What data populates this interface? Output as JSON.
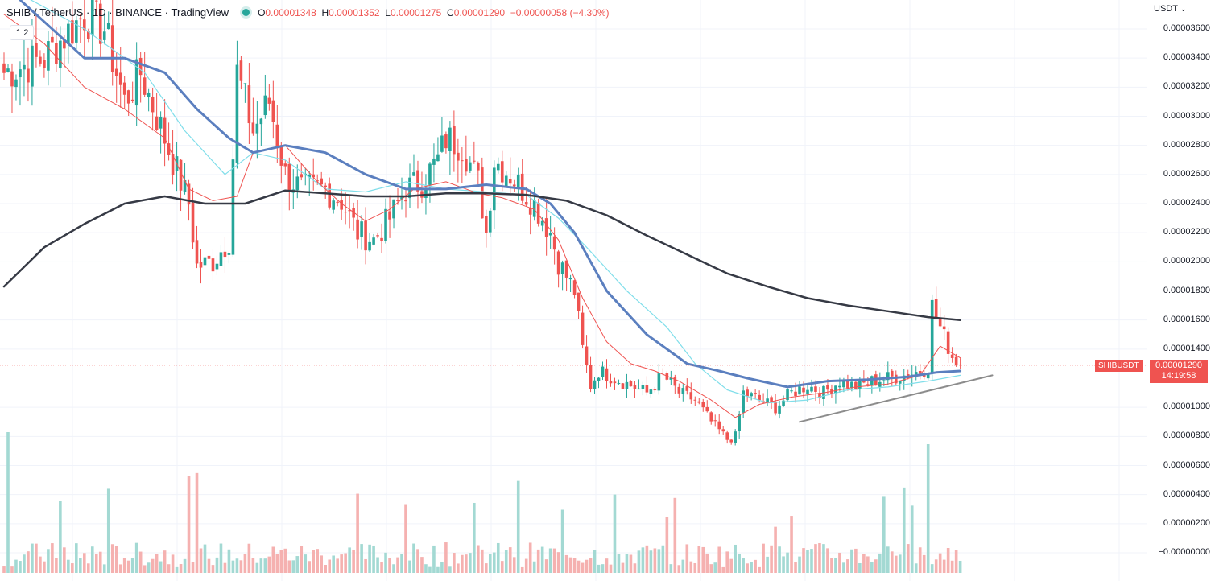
{
  "header": {
    "symbol": "SHIB",
    "separator": "/",
    "quote": "TetherUS",
    "interval": "1D",
    "exchange": "BINANCE",
    "provider": "TradingView",
    "open_key": "O",
    "open": "0.00001348",
    "high_key": "H",
    "high": "0.00001352",
    "low_key": "L",
    "low": "0.00001275",
    "close_key": "C",
    "close": "0.00001290",
    "change": "−0.00000058 (−4.30%)"
  },
  "indicator_toggle": "2",
  "price_scale": {
    "currency": "USDT",
    "ticks": [
      "0.00003600",
      "0.00003400",
      "0.00003200",
      "0.00003000",
      "0.00002800",
      "0.00002600",
      "0.00002400",
      "0.00002200",
      "0.00002000",
      "0.00001800",
      "0.00001600",
      "0.00001400",
      "0.00001000",
      "0.00000800",
      "0.00000600",
      "0.00000400",
      "0.00000200",
      "−0.00000000"
    ]
  },
  "last_price": {
    "symbol": "SHIBUSDT",
    "price": "0.00001290",
    "countdown": "14:19:58"
  },
  "colors": {
    "up": "#26a69a",
    "down": "#ef5350",
    "ma_fast": "#ef5350",
    "ma_mid": "#80deea",
    "ma_slow": "#5b7fbf",
    "ma_long": "#363a45",
    "trendline": "#8c8c8c"
  },
  "chart_data": {
    "type": "candlestick",
    "interval": "1D",
    "ylim": [
      -1e-07,
      3.7e-06
    ],
    "waypoints": [
      [
        0,
        3.3e-05
      ],
      [
        10,
        3.4e-05
      ],
      [
        20,
        3.7e-05
      ],
      [
        25,
        3.6e-05
      ],
      [
        30,
        3.1e-05
      ],
      [
        34,
        3.3e-05
      ],
      [
        38,
        3e-05
      ],
      [
        42,
        2.7e-05
      ],
      [
        46,
        2.4e-05
      ],
      [
        48,
        1.97e-05
      ],
      [
        52,
        2e-05
      ],
      [
        56,
        2.15e-05
      ],
      [
        58,
        3.3e-05
      ],
      [
        62,
        2.9e-05
      ],
      [
        66,
        3.1e-05
      ],
      [
        70,
        2.6e-05
      ],
      [
        74,
        2.5e-05
      ],
      [
        80,
        2.5e-05
      ],
      [
        84,
        2.42e-05
      ],
      [
        88,
        2.2e-05
      ],
      [
        92,
        2.15e-05
      ],
      [
        96,
        2.3e-05
      ],
      [
        100,
        2.5e-05
      ],
      [
        104,
        2.55e-05
      ],
      [
        108,
        2.7e-05
      ],
      [
        110,
        2.85e-05
      ],
      [
        114,
        2.8e-05
      ],
      [
        118,
        2.55e-05
      ],
      [
        120,
        2.2e-05
      ],
      [
        122,
        2.7e-05
      ],
      [
        126,
        2.6e-05
      ],
      [
        132,
        2.4e-05
      ],
      [
        136,
        2.2e-05
      ],
      [
        138,
        2e-05
      ],
      [
        142,
        1.8e-05
      ],
      [
        144,
        1.4e-05
      ],
      [
        146,
        1.15e-05
      ],
      [
        148,
        1.25e-05
      ],
      [
        152,
        1.2e-05
      ],
      [
        156,
        1.15e-05
      ],
      [
        160,
        1.1e-05
      ],
      [
        164,
        1.22e-05
      ],
      [
        168,
        1.1e-05
      ],
      [
        172,
        1.05e-05
      ],
      [
        176,
        9e-06
      ],
      [
        180,
        7.8e-06
      ],
      [
        182,
        8e-06
      ],
      [
        184,
        1.1e-05
      ],
      [
        188,
        1.05e-05
      ],
      [
        192,
        1e-05
      ],
      [
        196,
        1.1e-05
      ],
      [
        200,
        1.15e-05
      ],
      [
        204,
        1.1e-05
      ],
      [
        208,
        1.18e-05
      ],
      [
        212,
        1.14e-05
      ],
      [
        216,
        1.18e-05
      ],
      [
        220,
        1.2e-05
      ],
      [
        224,
        1.22e-05
      ],
      [
        228,
        1.25e-05
      ],
      [
        230,
        1.28e-05
      ],
      [
        231,
        1.7e-05
      ],
      [
        233,
        1.55e-05
      ],
      [
        236,
        1.35e-05
      ],
      [
        238,
        1.29e-05
      ]
    ],
    "ma_long": [
      [
        0,
        1.83e-05
      ],
      [
        10,
        2.1e-05
      ],
      [
        20,
        2.26e-05
      ],
      [
        30,
        2.4e-05
      ],
      [
        40,
        2.45e-05
      ],
      [
        50,
        2.4e-05
      ],
      [
        60,
        2.4e-05
      ],
      [
        70,
        2.49e-05
      ],
      [
        80,
        2.47e-05
      ],
      [
        90,
        2.45e-05
      ],
      [
        100,
        2.45e-05
      ],
      [
        110,
        2.47e-05
      ],
      [
        120,
        2.47e-05
      ],
      [
        130,
        2.46e-05
      ],
      [
        140,
        2.42e-05
      ],
      [
        150,
        2.32e-05
      ],
      [
        160,
        2.18e-05
      ],
      [
        170,
        2.05e-05
      ],
      [
        180,
        1.92e-05
      ],
      [
        190,
        1.83e-05
      ],
      [
        200,
        1.75e-05
      ],
      [
        210,
        1.7e-05
      ],
      [
        220,
        1.66e-05
      ],
      [
        230,
        1.62e-05
      ],
      [
        238,
        1.6e-05
      ]
    ],
    "ma_slow": [
      [
        0,
        3.9e-05
      ],
      [
        20,
        3.4e-05
      ],
      [
        30,
        3.4e-05
      ],
      [
        40,
        3.3e-05
      ],
      [
        48,
        3.05e-05
      ],
      [
        56,
        2.85e-05
      ],
      [
        62,
        2.75e-05
      ],
      [
        70,
        2.8e-05
      ],
      [
        80,
        2.75e-05
      ],
      [
        90,
        2.6e-05
      ],
      [
        100,
        2.5e-05
      ],
      [
        110,
        2.5e-05
      ],
      [
        120,
        2.53e-05
      ],
      [
        130,
        2.5e-05
      ],
      [
        136,
        2.4e-05
      ],
      [
        142,
        2.2e-05
      ],
      [
        150,
        1.8e-05
      ],
      [
        160,
        1.5e-05
      ],
      [
        170,
        1.3e-05
      ],
      [
        178,
        1.25e-05
      ],
      [
        185,
        1.2e-05
      ],
      [
        195,
        1.14e-05
      ],
      [
        205,
        1.18e-05
      ],
      [
        215,
        1.19e-05
      ],
      [
        225,
        1.21e-05
      ],
      [
        232,
        1.24e-05
      ],
      [
        238,
        1.25e-05
      ]
    ],
    "ma_mid": [
      [
        0,
        3.9e-05
      ],
      [
        20,
        3.6e-05
      ],
      [
        35,
        3.3e-05
      ],
      [
        45,
        2.9e-05
      ],
      [
        55,
        2.6e-05
      ],
      [
        62,
        2.75e-05
      ],
      [
        70,
        2.7e-05
      ],
      [
        80,
        2.5e-05
      ],
      [
        90,
        2.48e-05
      ],
      [
        100,
        2.55e-05
      ],
      [
        110,
        2.5e-05
      ],
      [
        120,
        2.48e-05
      ],
      [
        130,
        2.46e-05
      ],
      [
        138,
        2.3e-05
      ],
      [
        145,
        2.1e-05
      ],
      [
        155,
        1.8e-05
      ],
      [
        165,
        1.55e-05
      ],
      [
        172,
        1.3e-05
      ],
      [
        180,
        1.12e-05
      ],
      [
        190,
        1.03e-05
      ],
      [
        200,
        1.05e-05
      ],
      [
        210,
        1.12e-05
      ],
      [
        220,
        1.14e-05
      ],
      [
        230,
        1.18e-05
      ],
      [
        238,
        1.22e-05
      ]
    ],
    "ma_fast": [
      [
        0,
        3.7e-05
      ],
      [
        10,
        3.5e-05
      ],
      [
        20,
        3.2e-05
      ],
      [
        30,
        3.05e-05
      ],
      [
        40,
        2.85e-05
      ],
      [
        46,
        2.5e-05
      ],
      [
        52,
        2.42e-05
      ],
      [
        58,
        2.45e-05
      ],
      [
        62,
        2.75e-05
      ],
      [
        70,
        2.8e-05
      ],
      [
        78,
        2.55e-05
      ],
      [
        84,
        2.4e-05
      ],
      [
        90,
        2.28e-05
      ],
      [
        96,
        2.36e-05
      ],
      [
        102,
        2.5e-05
      ],
      [
        110,
        2.55e-05
      ],
      [
        118,
        2.47e-05
      ],
      [
        124,
        2.44e-05
      ],
      [
        132,
        2.36e-05
      ],
      [
        138,
        2.15e-05
      ],
      [
        144,
        1.75e-05
      ],
      [
        150,
        1.45e-05
      ],
      [
        156,
        1.3e-05
      ],
      [
        162,
        1.25e-05
      ],
      [
        168,
        1.18e-05
      ],
      [
        176,
        1.05e-05
      ],
      [
        182,
        9.3e-06
      ],
      [
        188,
        1.02e-05
      ],
      [
        196,
        1.07e-05
      ],
      [
        204,
        1.1e-05
      ],
      [
        212,
        1.14e-05
      ],
      [
        220,
        1.16e-05
      ],
      [
        228,
        1.22e-05
      ],
      [
        233,
        1.42e-05
      ],
      [
        238,
        1.34e-05
      ]
    ],
    "trendline": [
      [
        198,
        9e-06
      ],
      [
        246,
        1.22e-05
      ]
    ],
    "last_price_value": 1.29e-05
  }
}
